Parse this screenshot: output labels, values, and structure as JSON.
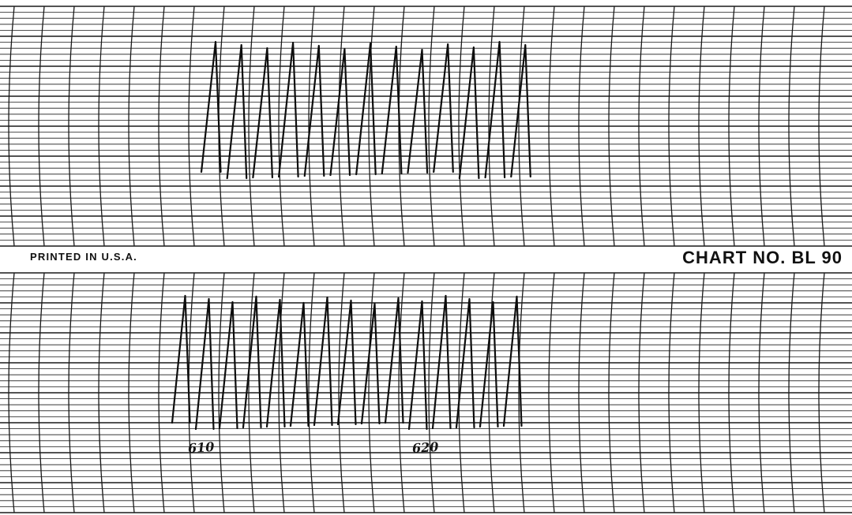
{
  "header_strip": {
    "left_label": "PRINTED IN U.S.A.",
    "right_label": "CHART NO. BL 90"
  },
  "annotations": {
    "mark_1": "610",
    "mark_2": "620"
  },
  "colors": {
    "paper": "#ffffff",
    "grid": "#1a1a1a",
    "trace": "#0d0d0d"
  }
}
